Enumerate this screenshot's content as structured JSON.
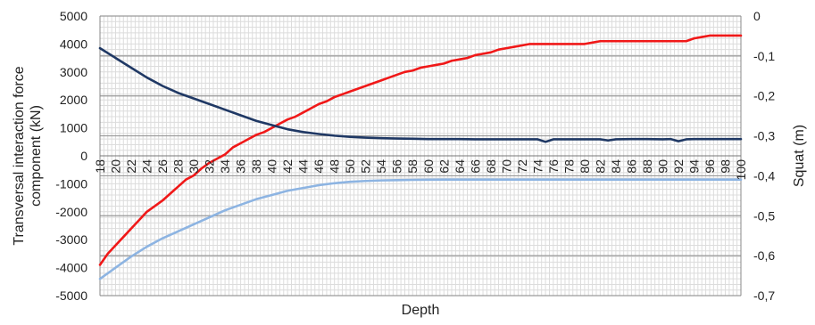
{
  "chart_data": {
    "type": "line",
    "title": "",
    "xlabel": "Depth",
    "ylabel_left": "Transversal interaction force component (kN)",
    "ylabel_right": "Squat (m)",
    "ylim_left": [
      -5000,
      5000
    ],
    "yticks_left": [
      5000,
      4000,
      3000,
      2000,
      1000,
      0,
      -1000,
      -2000,
      -3000,
      -4000,
      -5000
    ],
    "ylim_right": [
      -0.7,
      0
    ],
    "yticks_right_labels": [
      "0",
      "-0,1",
      "-0,2",
      "-0,3",
      "-0,4",
      "-0,5",
      "-0,6",
      "-0,7"
    ],
    "x_range": [
      18,
      100
    ],
    "xticks": [
      "18",
      "20",
      "22",
      "24",
      "26",
      "28",
      "30",
      "32",
      "34",
      "36",
      "38",
      "40",
      "42",
      "44",
      "46",
      "48",
      "50",
      "52",
      "54",
      "56",
      "58",
      "60",
      "62",
      "64",
      "66",
      "68",
      "70",
      "72",
      "74",
      "76",
      "78",
      "80",
      "82",
      "84",
      "86",
      "88",
      "90",
      "92",
      "94",
      "96",
      "98",
      "100"
    ],
    "grid": true,
    "legend": "none",
    "colors": {
      "red": "#f01818",
      "dark_blue": "#1f3864",
      "light_blue": "#8db4e2",
      "grid_major": "#9a9a9a",
      "grid_minor": "#dcdcdc"
    },
    "series": [
      {
        "color": "red",
        "axis": "left",
        "points": [
          [
            18,
            -3900
          ],
          [
            19,
            -3500
          ],
          [
            20,
            -3200
          ],
          [
            21,
            -2900
          ],
          [
            22,
            -2600
          ],
          [
            23,
            -2300
          ],
          [
            24,
            -2000
          ],
          [
            25,
            -1800
          ],
          [
            26,
            -1600
          ],
          [
            27,
            -1350
          ],
          [
            28,
            -1100
          ],
          [
            29,
            -850
          ],
          [
            30,
            -700
          ],
          [
            31,
            -450
          ],
          [
            32,
            -250
          ],
          [
            33,
            -100
          ],
          [
            34,
            50
          ],
          [
            35,
            300
          ],
          [
            36,
            450
          ],
          [
            37,
            600
          ],
          [
            38,
            750
          ],
          [
            39,
            850
          ],
          [
            40,
            1000
          ],
          [
            41,
            1150
          ],
          [
            42,
            1300
          ],
          [
            43,
            1400
          ],
          [
            44,
            1550
          ],
          [
            45,
            1700
          ],
          [
            46,
            1850
          ],
          [
            47,
            1950
          ],
          [
            48,
            2100
          ],
          [
            49,
            2200
          ],
          [
            50,
            2300
          ],
          [
            51,
            2400
          ],
          [
            52,
            2500
          ],
          [
            53,
            2600
          ],
          [
            54,
            2700
          ],
          [
            55,
            2800
          ],
          [
            56,
            2900
          ],
          [
            57,
            3000
          ],
          [
            58,
            3050
          ],
          [
            59,
            3150
          ],
          [
            60,
            3200
          ],
          [
            61,
            3250
          ],
          [
            62,
            3300
          ],
          [
            63,
            3400
          ],
          [
            64,
            3450
          ],
          [
            65,
            3500
          ],
          [
            66,
            3600
          ],
          [
            67,
            3650
          ],
          [
            68,
            3700
          ],
          [
            69,
            3800
          ],
          [
            70,
            3850
          ],
          [
            71,
            3900
          ],
          [
            72,
            3950
          ],
          [
            73,
            4000
          ],
          [
            74,
            4000
          ],
          [
            75,
            4000
          ],
          [
            76,
            4000
          ],
          [
            77,
            4000
          ],
          [
            78,
            4000
          ],
          [
            79,
            4000
          ],
          [
            80,
            4000
          ],
          [
            81,
            4050
          ],
          [
            82,
            4100
          ],
          [
            83,
            4100
          ],
          [
            84,
            4100
          ],
          [
            85,
            4100
          ],
          [
            86,
            4100
          ],
          [
            87,
            4100
          ],
          [
            88,
            4100
          ],
          [
            89,
            4100
          ],
          [
            90,
            4100
          ],
          [
            91,
            4100
          ],
          [
            92,
            4100
          ],
          [
            93,
            4100
          ],
          [
            94,
            4200
          ],
          [
            95,
            4250
          ],
          [
            96,
            4300
          ],
          [
            97,
            4300
          ],
          [
            98,
            4300
          ],
          [
            99,
            4300
          ],
          [
            100,
            4300
          ]
        ]
      },
      {
        "color": "dark_blue",
        "axis": "left",
        "points": [
          [
            18,
            3850
          ],
          [
            20,
            3500
          ],
          [
            22,
            3150
          ],
          [
            24,
            2800
          ],
          [
            26,
            2500
          ],
          [
            28,
            2250
          ],
          [
            30,
            2050
          ],
          [
            32,
            1850
          ],
          [
            34,
            1650
          ],
          [
            36,
            1450
          ],
          [
            38,
            1250
          ],
          [
            40,
            1100
          ],
          [
            42,
            950
          ],
          [
            44,
            850
          ],
          [
            46,
            780
          ],
          [
            48,
            720
          ],
          [
            50,
            680
          ],
          [
            52,
            650
          ],
          [
            54,
            630
          ],
          [
            56,
            620
          ],
          [
            58,
            610
          ],
          [
            60,
            600
          ],
          [
            62,
            600
          ],
          [
            64,
            600
          ],
          [
            66,
            590
          ],
          [
            68,
            590
          ],
          [
            70,
            590
          ],
          [
            72,
            590
          ],
          [
            74,
            590
          ],
          [
            75,
            500
          ],
          [
            76,
            590
          ],
          [
            78,
            590
          ],
          [
            80,
            590
          ],
          [
            82,
            590
          ],
          [
            83,
            550
          ],
          [
            84,
            590
          ],
          [
            86,
            600
          ],
          [
            88,
            600
          ],
          [
            90,
            590
          ],
          [
            91,
            600
          ],
          [
            92,
            520
          ],
          [
            93,
            590
          ],
          [
            94,
            600
          ],
          [
            96,
            600
          ],
          [
            98,
            600
          ],
          [
            100,
            600
          ]
        ]
      },
      {
        "color": "light_blue",
        "axis": "left",
        "points": [
          [
            18,
            -4400
          ],
          [
            20,
            -4000
          ],
          [
            22,
            -3600
          ],
          [
            24,
            -3250
          ],
          [
            26,
            -2950
          ],
          [
            28,
            -2700
          ],
          [
            30,
            -2450
          ],
          [
            32,
            -2200
          ],
          [
            34,
            -1950
          ],
          [
            36,
            -1750
          ],
          [
            38,
            -1550
          ],
          [
            40,
            -1400
          ],
          [
            42,
            -1250
          ],
          [
            44,
            -1150
          ],
          [
            46,
            -1050
          ],
          [
            48,
            -980
          ],
          [
            50,
            -930
          ],
          [
            52,
            -900
          ],
          [
            54,
            -880
          ],
          [
            56,
            -870
          ],
          [
            58,
            -860
          ],
          [
            60,
            -855
          ],
          [
            62,
            -850
          ],
          [
            66,
            -850
          ],
          [
            70,
            -850
          ],
          [
            80,
            -850
          ],
          [
            90,
            -850
          ],
          [
            100,
            -850
          ]
        ]
      }
    ]
  }
}
